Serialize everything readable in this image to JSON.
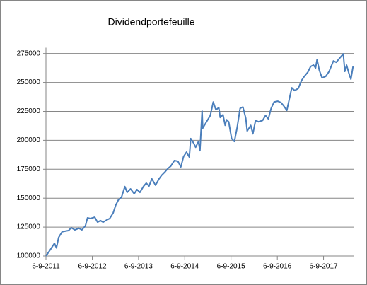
{
  "chart_data": {
    "type": "line",
    "title": "Dividendportefeuille",
    "x": [
      "2011-09-06",
      "2011-10-14",
      "2011-11-12",
      "2011-11-28",
      "2011-12-15",
      "2012-01-12",
      "2012-03-02",
      "2012-03-24",
      "2012-04-21",
      "2012-05-24",
      "2012-06-16",
      "2012-07-14",
      "2012-07-30",
      "2012-08-22",
      "2012-09-25",
      "2012-10-17",
      "2012-11-09",
      "2012-12-01",
      "2012-12-29",
      "2013-01-21",
      "2013-02-18",
      "2013-03-10",
      "2013-04-02",
      "2013-04-24",
      "2013-05-21",
      "2013-06-08",
      "2013-07-05",
      "2013-08-03",
      "2013-08-25",
      "2013-09-17",
      "2013-10-14",
      "2013-11-06",
      "2013-11-28",
      "2013-12-20",
      "2014-01-18",
      "2014-02-15",
      "2014-03-07",
      "2014-04-04",
      "2014-04-27",
      "2014-05-18",
      "2014-06-16",
      "2014-07-14",
      "2014-08-06",
      "2014-08-28",
      "2014-09-20",
      "2014-10-12",
      "2014-10-23",
      "2014-11-15",
      "2014-12-01",
      "2014-12-23",
      "2015-01-04",
      "2015-01-21",
      "2015-01-26",
      "2015-02-28",
      "2015-03-27",
      "2015-04-19",
      "2015-05-10",
      "2015-06-02",
      "2015-06-13",
      "2015-07-05",
      "2015-07-22",
      "2015-08-02",
      "2015-08-19",
      "2015-09-11",
      "2015-10-03",
      "2015-10-25",
      "2015-11-17",
      "2015-12-09",
      "2016-01-01",
      "2016-01-12",
      "2016-02-09",
      "2016-02-26",
      "2016-03-18",
      "2016-04-10",
      "2016-05-13",
      "2016-06-05",
      "2016-06-27",
      "2016-07-19",
      "2016-08-11",
      "2016-09-09",
      "2016-10-06",
      "2016-10-28",
      "2016-11-20",
      "2016-12-06",
      "2016-12-29",
      "2017-01-21",
      "2017-02-18",
      "2017-03-16",
      "2017-04-07",
      "2017-05-05",
      "2017-05-27",
      "2017-06-19",
      "2017-07-05",
      "2017-07-17",
      "2017-08-03",
      "2017-08-25",
      "2017-09-23",
      "2017-10-20",
      "2017-11-23",
      "2017-12-15",
      "2018-01-12",
      "2018-02-09",
      "2018-02-21",
      "2018-03-07",
      "2018-03-24",
      "2018-04-10",
      "2018-04-27"
    ],
    "series": [
      {
        "name": "Dividendportefeuille",
        "color": "#4a7ebb",
        "values": [
          100000,
          106100,
          111000,
          107000,
          116000,
          121000,
          122000,
          124500,
          122600,
          124000,
          122600,
          126300,
          133000,
          132400,
          133600,
          129300,
          130600,
          129300,
          131200,
          132400,
          137300,
          144000,
          148900,
          150700,
          160000,
          155000,
          158000,
          153800,
          157500,
          155000,
          160000,
          163000,
          160500,
          166700,
          161200,
          166700,
          169700,
          172800,
          175800,
          177600,
          182500,
          181900,
          177000,
          186100,
          189800,
          185500,
          201500,
          197600,
          194000,
          198900,
          191000,
          225200,
          210500,
          216600,
          221500,
          233100,
          226400,
          228200,
          219700,
          222100,
          212900,
          217800,
          216000,
          201500,
          199000,
          211200,
          227600,
          228800,
          219000,
          208000,
          212900,
          205600,
          217200,
          216000,
          217200,
          221500,
          218500,
          227600,
          233100,
          233800,
          232500,
          229500,
          225800,
          233800,
          245400,
          243000,
          244800,
          251600,
          255200,
          258900,
          263800,
          265000,
          262500,
          269900,
          260700,
          254000,
          255200,
          259500,
          268600,
          267400,
          271100,
          274700,
          259500,
          265000,
          258300,
          252800,
          263800
        ]
      }
    ],
    "xlim": [
      "2011-09-06",
      "2018-05-01"
    ],
    "xticks": [
      {
        "value": "2011-09-06",
        "label": "6-9-2011"
      },
      {
        "value": "2012-09-06",
        "label": "6-9-2012"
      },
      {
        "value": "2013-09-06",
        "label": "6-9-2013"
      },
      {
        "value": "2014-09-06",
        "label": "6-9-2014"
      },
      {
        "value": "2015-09-06",
        "label": "6-9-2015"
      },
      {
        "value": "2016-09-06",
        "label": "6-9-2016"
      },
      {
        "value": "2017-09-06",
        "label": "6-9-2017"
      }
    ],
    "ylim": [
      100000,
      280000
    ],
    "yticks": [
      100000,
      125000,
      150000,
      175000,
      200000,
      225000,
      250000,
      275000
    ],
    "grid": true
  }
}
